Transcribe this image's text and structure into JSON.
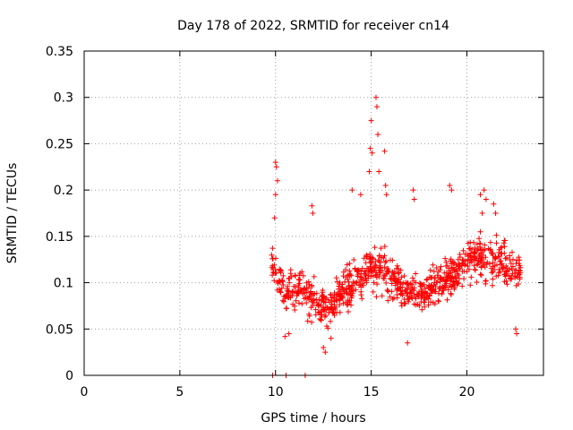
{
  "chart_data": {
    "type": "scatter",
    "title": "Day 178 of 2022, SRMTID for receiver cn14",
    "xlabel": "GPS time / hours",
    "ylabel": "SRMTID / TECUs",
    "xlim": [
      0,
      24
    ],
    "ylim": [
      0,
      0.35
    ],
    "x_ticks": [
      0,
      5,
      10,
      15,
      20
    ],
    "x_tick_labels": [
      "0",
      "5",
      "10",
      "15",
      "20"
    ],
    "y_ticks": [
      0,
      0.05,
      0.1,
      0.15,
      0.2,
      0.25,
      0.3,
      0.35
    ],
    "y_tick_labels": [
      "0",
      "0.05",
      "0.1",
      "0.15",
      "0.2",
      "0.25",
      "0.3",
      "0.35"
    ],
    "grid": true,
    "marker": "plus",
    "color": "#ff0000",
    "data_start_hour": 9.8,
    "data_end_hour": 22.8,
    "generated_sample_count": 900,
    "baseline_profile": [
      {
        "x": 9.8,
        "y": 0.12,
        "spread": 0.04
      },
      {
        "x": 10.5,
        "y": 0.09,
        "spread": 0.04
      },
      {
        "x": 11.5,
        "y": 0.09,
        "spread": 0.04
      },
      {
        "x": 12.7,
        "y": 0.07,
        "spread": 0.035
      },
      {
        "x": 14.0,
        "y": 0.1,
        "spread": 0.04
      },
      {
        "x": 15.2,
        "y": 0.12,
        "spread": 0.045
      },
      {
        "x": 16.5,
        "y": 0.1,
        "spread": 0.035
      },
      {
        "x": 17.5,
        "y": 0.085,
        "spread": 0.03
      },
      {
        "x": 18.5,
        "y": 0.1,
        "spread": 0.035
      },
      {
        "x": 19.5,
        "y": 0.11,
        "spread": 0.035
      },
      {
        "x": 20.5,
        "y": 0.13,
        "spread": 0.04
      },
      {
        "x": 21.5,
        "y": 0.125,
        "spread": 0.04
      },
      {
        "x": 22.8,
        "y": 0.11,
        "spread": 0.035
      }
    ],
    "highlight_points": [
      {
        "x": 10.0,
        "y": 0.23
      },
      {
        "x": 10.05,
        "y": 0.225
      },
      {
        "x": 10.1,
        "y": 0.21
      },
      {
        "x": 10.0,
        "y": 0.195
      },
      {
        "x": 9.95,
        "y": 0.17
      },
      {
        "x": 11.9,
        "y": 0.183
      },
      {
        "x": 11.95,
        "y": 0.175
      },
      {
        "x": 14.0,
        "y": 0.2
      },
      {
        "x": 14.45,
        "y": 0.195
      },
      {
        "x": 14.9,
        "y": 0.22
      },
      {
        "x": 14.95,
        "y": 0.245
      },
      {
        "x": 15.0,
        "y": 0.275
      },
      {
        "x": 15.05,
        "y": 0.24
      },
      {
        "x": 15.25,
        "y": 0.3
      },
      {
        "x": 15.3,
        "y": 0.29
      },
      {
        "x": 15.35,
        "y": 0.26
      },
      {
        "x": 15.4,
        "y": 0.22
      },
      {
        "x": 15.7,
        "y": 0.242
      },
      {
        "x": 15.75,
        "y": 0.205
      },
      {
        "x": 15.8,
        "y": 0.195
      },
      {
        "x": 17.2,
        "y": 0.2
      },
      {
        "x": 17.25,
        "y": 0.19
      },
      {
        "x": 19.1,
        "y": 0.205
      },
      {
        "x": 19.2,
        "y": 0.2
      },
      {
        "x": 20.7,
        "y": 0.195
      },
      {
        "x": 20.9,
        "y": 0.2
      },
      {
        "x": 21.0,
        "y": 0.19
      },
      {
        "x": 21.4,
        "y": 0.185
      },
      {
        "x": 21.5,
        "y": 0.175
      },
      {
        "x": 20.8,
        "y": 0.175
      },
      {
        "x": 12.5,
        "y": 0.03
      },
      {
        "x": 12.6,
        "y": 0.025
      },
      {
        "x": 12.9,
        "y": 0.04
      },
      {
        "x": 16.9,
        "y": 0.035
      },
      {
        "x": 22.6,
        "y": 0.045
      },
      {
        "x": 22.55,
        "y": 0.05
      },
      {
        "x": 10.5,
        "y": 0.042
      },
      {
        "x": 10.7,
        "y": 0.045
      }
    ],
    "zero_points": [
      {
        "x": 9.85,
        "y": 0
      },
      {
        "x": 10.55,
        "y": 0
      },
      {
        "x": 11.55,
        "y": 0
      }
    ]
  }
}
